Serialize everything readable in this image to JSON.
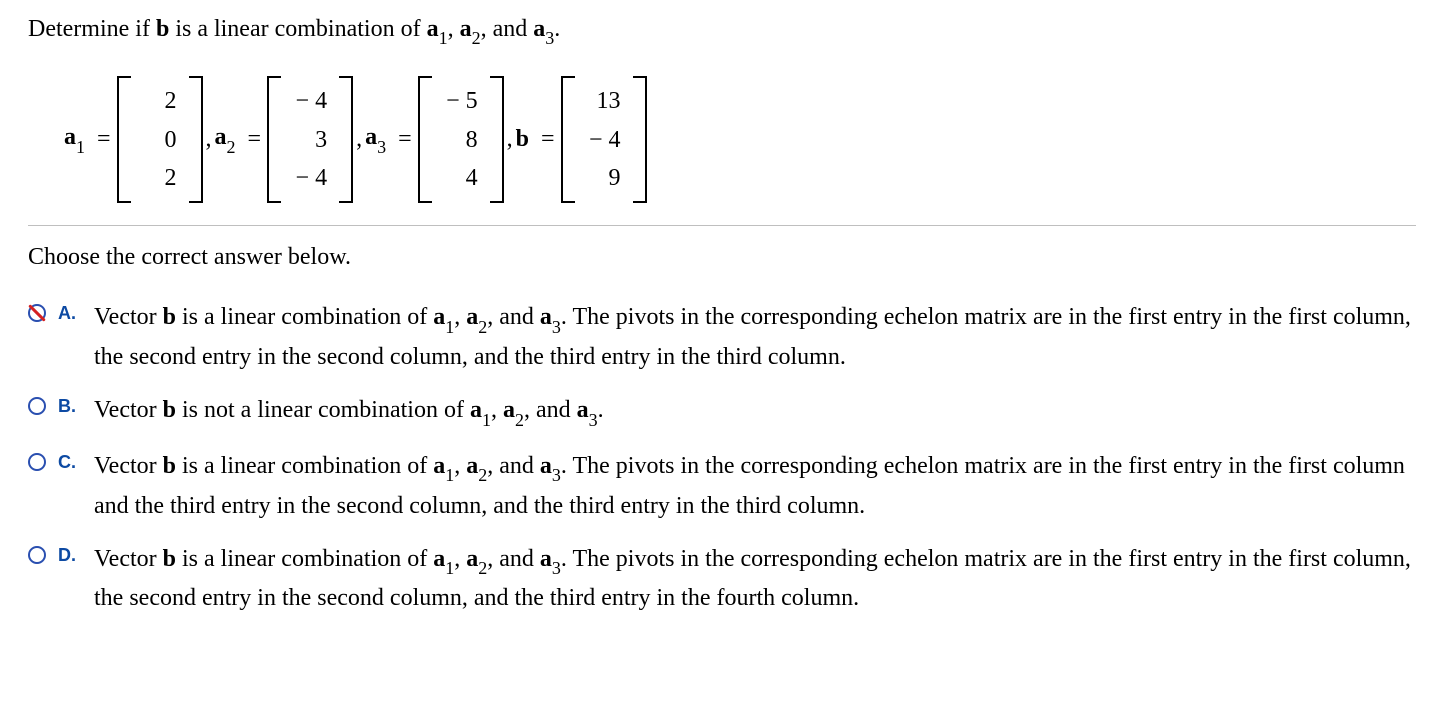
{
  "question": {
    "prefix": "Determine if ",
    "b": "b",
    "mid": " is a linear combination of ",
    "a1": "a",
    "s1": "1",
    "c1": ", ",
    "a2": "a",
    "s2": "2",
    "c2": ", and ",
    "a3": "a",
    "s3": "3",
    "suffix": "."
  },
  "vectors": {
    "a1": {
      "label": "a",
      "sub": "1",
      "eq": "=",
      "v0": "2",
      "v1": "0",
      "v2": "2",
      "sep": ","
    },
    "a2": {
      "label": "a",
      "sub": "2",
      "eq": "=",
      "v0": "− 4",
      "v1": "3",
      "v2": "− 4",
      "sep": ","
    },
    "a3": {
      "label": "a",
      "sub": "3",
      "eq": "=",
      "v0": "− 5",
      "v1": "8",
      "v2": "4",
      "sep": ","
    },
    "b": {
      "label": "b",
      "eq": "=",
      "v0": "13",
      "v1": "− 4",
      "v2": "9"
    }
  },
  "prompt": "Choose the correct answer below.",
  "options": {
    "A": {
      "letter": "A.",
      "state": "incorrect-selected",
      "t0": "Vector ",
      "b0": "b",
      "t1": " is a linear combination of ",
      "a1": "a",
      "s1": "1",
      "c1": ", ",
      "a2": "a",
      "s2": "2",
      "c2": ", and ",
      "a3": "a",
      "s3": "3",
      "t2": ". The pivots in the corresponding echelon matrix are in the first entry in the first column, the second entry in the second column, and the third entry in the third column."
    },
    "B": {
      "letter": "B.",
      "state": "unselected",
      "t0": "Vector ",
      "b0": "b",
      "t1": " is not a linear combination of ",
      "a1": "a",
      "s1": "1",
      "c1": ", ",
      "a2": "a",
      "s2": "2",
      "c2": ", and ",
      "a3": "a",
      "s3": "3",
      "t2": "."
    },
    "C": {
      "letter": "C.",
      "state": "unselected",
      "t0": "Vector ",
      "b0": "b",
      "t1": " is a linear combination of ",
      "a1": "a",
      "s1": "1",
      "c1": ", ",
      "a2": "a",
      "s2": "2",
      "c2": ", and ",
      "a3": "a",
      "s3": "3",
      "t2": ". The pivots in the corresponding echelon matrix are in the first entry in the first column and the third entry in the second column, and the third entry in the third column."
    },
    "D": {
      "letter": "D.",
      "state": "unselected",
      "t0": "Vector ",
      "b0": "b",
      "t1": " is a linear combination of ",
      "a1": "a",
      "s1": "1",
      "c1": ", ",
      "a2": "a",
      "s2": "2",
      "c2": ", and ",
      "a3": "a",
      "s3": "3",
      "t2": ". The pivots in the corresponding echelon matrix are in the first entry in the first column, the second entry in the second column, and the third entry in the fourth column."
    }
  },
  "colors": {
    "radio_border": "#2a4fb0",
    "letter_color": "#0d4aa3",
    "incorrect_slash": "#d42020",
    "divider": "#bfbfbf",
    "background": "#ffffff",
    "text": "#000000"
  }
}
